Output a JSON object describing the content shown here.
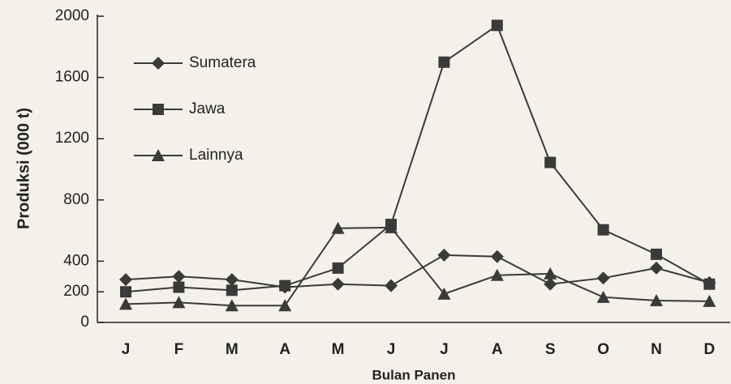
{
  "chart_data": {
    "type": "line",
    "xlabel": "Bulan Panen",
    "ylabel": "Produksi (000 t)",
    "categories": [
      "J",
      "F",
      "M",
      "A",
      "M",
      "J",
      "J",
      "A",
      "S",
      "O",
      "N",
      "D"
    ],
    "ylim": [
      0,
      2000
    ],
    "yticks": [
      0,
      200,
      400,
      800,
      1200,
      1600,
      2000
    ],
    "legend": "upper left",
    "series": [
      {
        "name": "Sumatera",
        "color": "#3a3a3a",
        "marker": "diamond",
        "values": [
          280,
          300,
          280,
          230,
          250,
          240,
          440,
          430,
          250,
          290,
          355,
          260
        ]
      },
      {
        "name": "Jawa",
        "color": "#3a3a3a",
        "marker": "square",
        "values": [
          200,
          230,
          210,
          240,
          355,
          640,
          1700,
          1940,
          1045,
          605,
          445,
          250
        ]
      },
      {
        "name": "Lainnya",
        "color": "#3a3a3a",
        "marker": "triangle",
        "values": [
          120,
          130,
          110,
          110,
          615,
          620,
          186,
          308,
          318,
          165,
          143,
          138
        ]
      }
    ]
  }
}
